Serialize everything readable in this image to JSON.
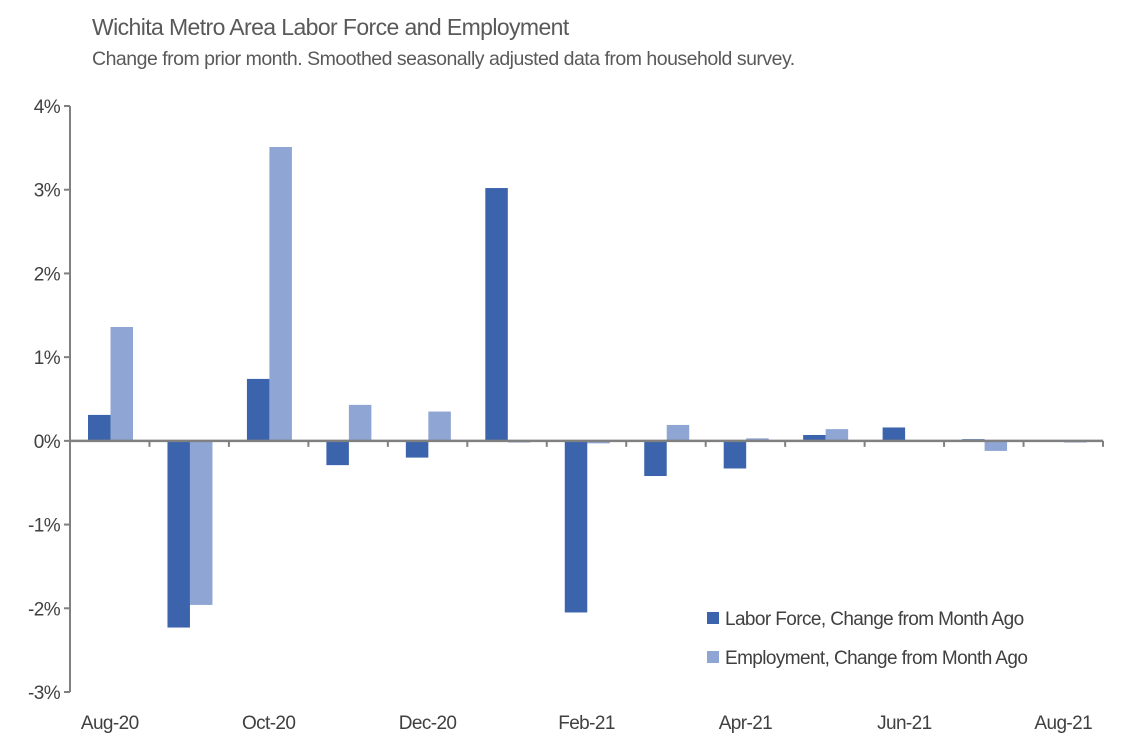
{
  "chart_data": {
    "type": "bar",
    "title": "Wichita Metro Area Labor Force and Employment",
    "subtitle": "Change from prior month. Smoothed seasonally adjusted data from household survey.",
    "xlabel": "",
    "ylabel": "",
    "categories": [
      "Aug-20",
      "Sep-20",
      "Oct-20",
      "Nov-20",
      "Dec-20",
      "Jan-21",
      "Feb-21",
      "Mar-21",
      "Apr-21",
      "May-21",
      "Jun-21",
      "Jul-21",
      "Aug-21"
    ],
    "x_tick_labels": [
      "Aug-20",
      "",
      "Oct-20",
      "",
      "Dec-20",
      "",
      "Feb-21",
      "",
      "Apr-21",
      "",
      "Jun-21",
      "",
      "Aug-21"
    ],
    "y_ticks": [
      4,
      3,
      2,
      1,
      0,
      -1,
      -2,
      -3
    ],
    "y_tick_labels": [
      "4%",
      "3%",
      "2%",
      "1%",
      "0%",
      "-1%",
      "-2%",
      "-3%"
    ],
    "ylim": [
      -3,
      4
    ],
    "unit": "%",
    "grid": false,
    "legend_position": "bottom-right",
    "series": [
      {
        "name": "Labor Force, Change from Month Ago",
        "color": "#3c64ad",
        "values": [
          0.31,
          -2.23,
          0.74,
          -0.29,
          -0.2,
          3.02,
          -2.05,
          -0.42,
          -0.33,
          0.07,
          0.16,
          0.02,
          0.0
        ]
      },
      {
        "name": "Employment, Change from Month Ago",
        "color": "#8fa5d4",
        "values": [
          1.36,
          -1.96,
          3.51,
          0.43,
          0.35,
          -0.02,
          -0.03,
          0.19,
          0.03,
          0.14,
          0.0,
          -0.12,
          -0.02
        ]
      }
    ]
  }
}
